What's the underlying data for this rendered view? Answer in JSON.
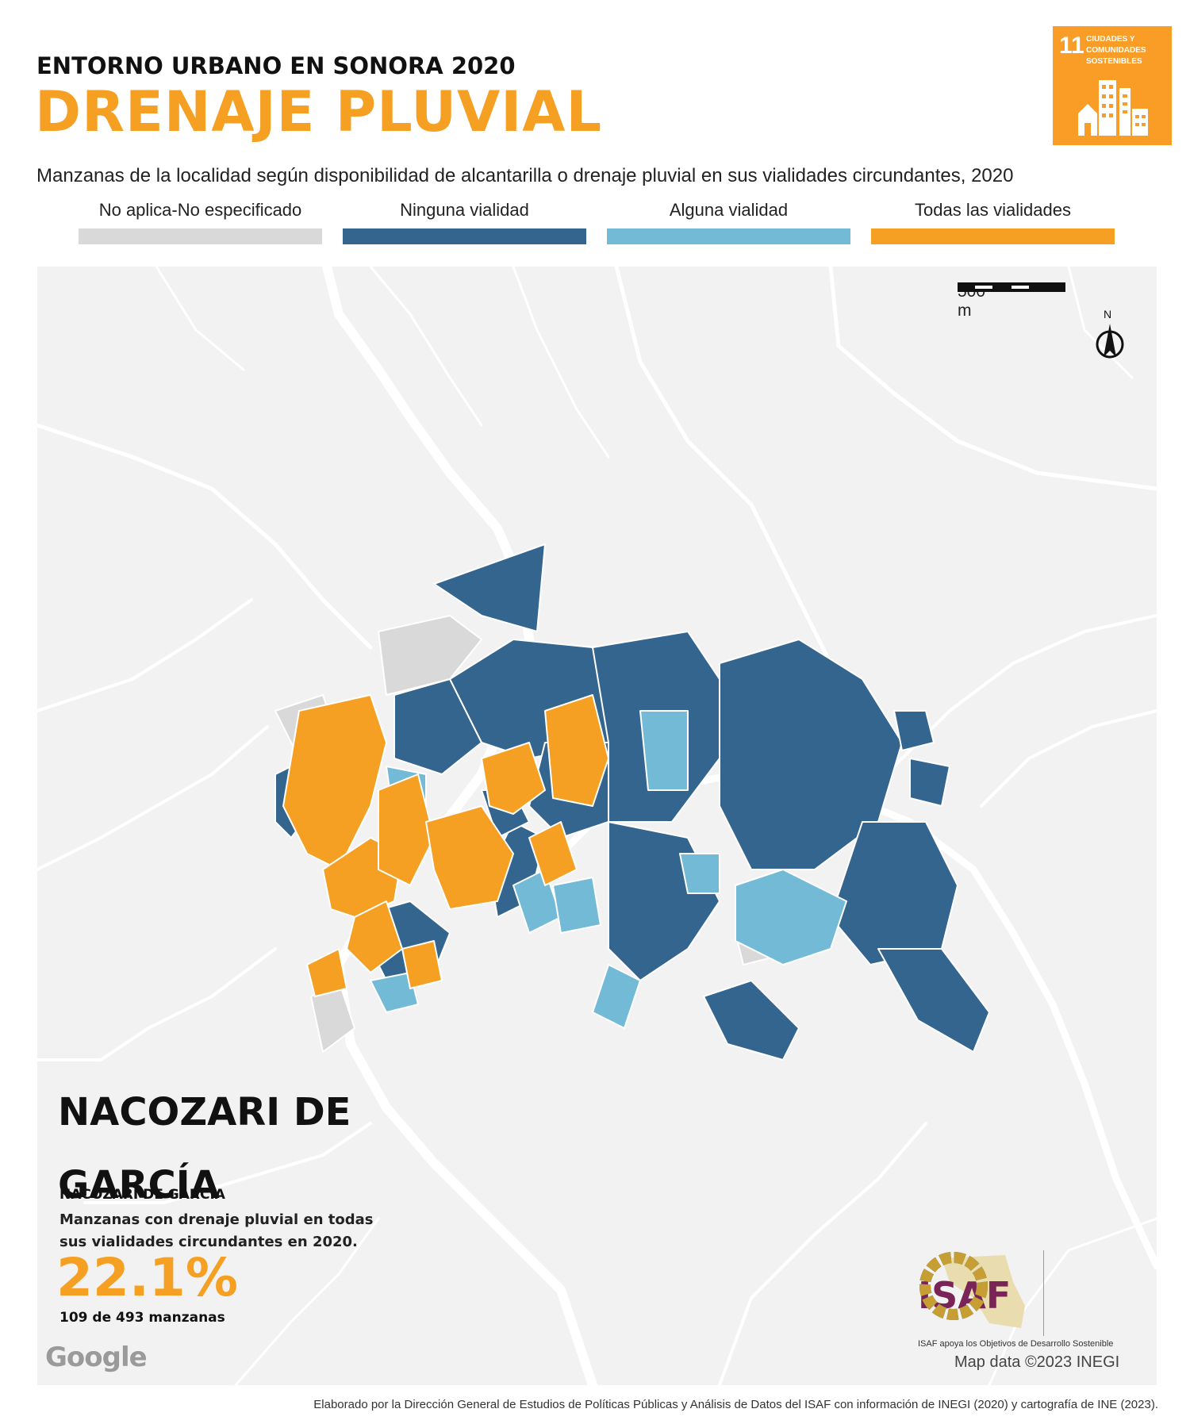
{
  "header": {
    "supertitle": "ENTORNO URBANO EN SONORA 2020",
    "title": "DRENAJE PLUVIAL",
    "subtitle": "Manzanas de la localidad según disponibilidad de alcantarilla o drenaje pluvial en sus vialidades circundantes, 2020"
  },
  "sdg_badge": {
    "number": "11",
    "label": "CIUDADES Y COMUNIDADES SOSTENIBLES",
    "color": "#f99d26",
    "icon": "city-buildings-icon"
  },
  "legend": [
    {
      "label": "No aplica-No especificado",
      "color": "#d9d9d9"
    },
    {
      "label": "Ninguna vialidad",
      "color": "#33658f"
    },
    {
      "label": "Alguna vialidad",
      "color": "#72bad6"
    },
    {
      "label": "Todas las vialidades",
      "color": "#f6a023"
    }
  ],
  "map": {
    "scale_label": "500 m",
    "north_label": "N",
    "background_color": "#f2f2f2",
    "road_color": "#ffffff",
    "attribution_logo": "Google",
    "attribution": "Map data ©2023 INEGI"
  },
  "stats": {
    "place_name": "NACOZARI DE GARCÍA",
    "municipality": "NACOZARI DE GARCÍA",
    "description": "Manzanas con drenaje pluvial en todas sus vialidades circundantes en 2020.",
    "percent": "22.1%",
    "count": "109 de 493 manzanas"
  },
  "isaf": {
    "logo_text": "ISAF",
    "caption": "ISAF apoya los Objetivos de Desarrollo Sostenible"
  },
  "footer": {
    "credits": "Elaborado por la Dirección General de Estudios de Políticas Públicas y Análisis de Datos del ISAF con información de INEGI (2020) y cartografía de INE (2023)."
  }
}
